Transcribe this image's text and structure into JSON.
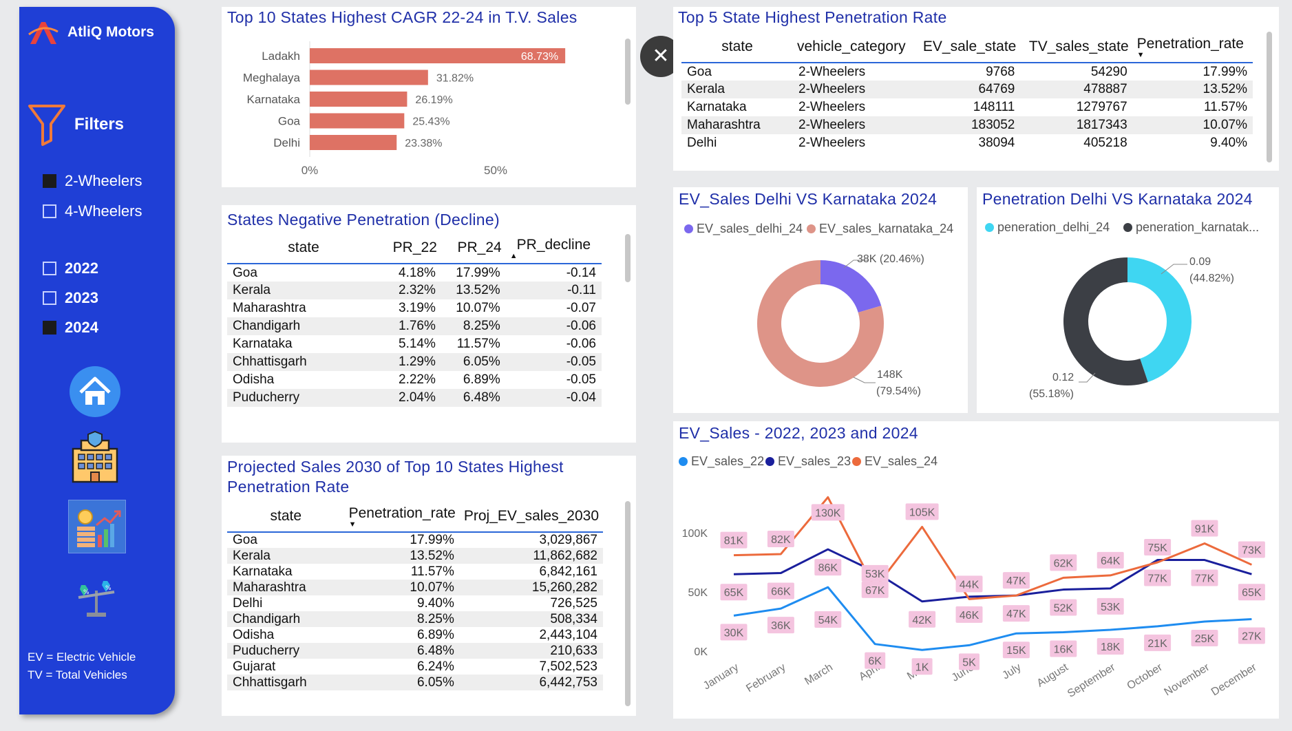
{
  "sidebar": {
    "brand": "AtliQ Motors",
    "filters_title": "Filters",
    "vehicle_filters": [
      {
        "label": "2-Wheelers",
        "checked": true
      },
      {
        "label": "4-Wheelers",
        "checked": false
      }
    ],
    "year_filters": [
      {
        "label": "2022",
        "checked": false
      },
      {
        "label": "2023",
        "checked": false
      },
      {
        "label": "2024",
        "checked": true
      }
    ],
    "nav_icons": [
      "home-icon",
      "building-icon",
      "sales-chart-icon",
      "balance-scale-icon"
    ],
    "note_ev": "EV = Electric Vehicle",
    "note_tv": "TV = Total Vehicles"
  },
  "cagr": {
    "title": "Top 10 States Highest CAGR 22-24 in T.V. Sales",
    "axis_ticks": [
      "0%",
      "50%"
    ],
    "color": "#de7264"
  },
  "negative": {
    "title": "States Negative Penetration (Decline)",
    "headers": [
      "state",
      "PR_22",
      "PR_24",
      "PR_decline"
    ],
    "rows": [
      [
        "Goa",
        "4.18%",
        "17.99%",
        "-0.14"
      ],
      [
        "Kerala",
        "2.32%",
        "13.52%",
        "-0.11"
      ],
      [
        "Maharashtra",
        "3.19%",
        "10.07%",
        "-0.07"
      ],
      [
        "Chandigarh",
        "1.76%",
        "8.25%",
        "-0.06"
      ],
      [
        "Karnataka",
        "5.14%",
        "11.57%",
        "-0.06"
      ],
      [
        "Chhattisgarh",
        "1.29%",
        "6.05%",
        "-0.05"
      ],
      [
        "Odisha",
        "2.22%",
        "6.89%",
        "-0.05"
      ],
      [
        "Puducherry",
        "2.04%",
        "6.48%",
        "-0.04"
      ]
    ]
  },
  "projected": {
    "title_line1": "Projected Sales 2030 of Top 10 States Highest",
    "title_line2": "Penetration Rate",
    "headers": [
      "state",
      "Penetration_rate",
      "Proj_EV_sales_2030"
    ],
    "rows": [
      [
        "Goa",
        "17.99%",
        "3,029,867"
      ],
      [
        "Kerala",
        "13.52%",
        "11,862,682"
      ],
      [
        "Karnataka",
        "11.57%",
        "6,842,161"
      ],
      [
        "Maharashtra",
        "10.07%",
        "15,260,282"
      ],
      [
        "Delhi",
        "9.40%",
        "726,525"
      ],
      [
        "Chandigarh",
        "8.25%",
        "508,334"
      ],
      [
        "Odisha",
        "6.89%",
        "2,443,104"
      ],
      [
        "Puducherry",
        "6.48%",
        "210,633"
      ],
      [
        "Gujarat",
        "6.24%",
        "7,502,523"
      ],
      [
        "Chhattisgarh",
        "6.05%",
        "6,442,753"
      ]
    ]
  },
  "top5": {
    "title": "Top 5 State Highest Penetration Rate",
    "headers": [
      "state",
      "vehicle_category",
      "EV_sale_state",
      "TV_sales_state",
      "Penetration_rate"
    ],
    "rows": [
      [
        "Goa",
        "2-Wheelers",
        "9768",
        "54290",
        "17.99%"
      ],
      [
        "Kerala",
        "2-Wheelers",
        "64769",
        "478887",
        "13.52%"
      ],
      [
        "Karnataka",
        "2-Wheelers",
        "148111",
        "1279767",
        "11.57%"
      ],
      [
        "Maharashtra",
        "2-Wheelers",
        "183052",
        "1817343",
        "10.07%"
      ],
      [
        "Delhi",
        "2-Wheelers",
        "38094",
        "405218",
        "9.40%"
      ]
    ]
  },
  "donut_sales": {
    "title": "EV_Sales Delhi VS Karnataka 2024",
    "legend": [
      {
        "name": "EV_sales_delhi_24",
        "color": "#7b68ee"
      },
      {
        "name": "EV_sales_karnataka_24",
        "color": "#de9488"
      }
    ],
    "label_a": "38K (20.46%)",
    "label_b1": "148K",
    "label_b2": "(79.54%)"
  },
  "donut_pen": {
    "title": "Penetration Delhi VS Karnataka 2024",
    "legend": [
      {
        "name": "peneration_delhi_24",
        "color": "#3fd6f2"
      },
      {
        "name": "peneration_karnatak...",
        "color": "#3c3f45"
      }
    ],
    "label_a1": "0.09",
    "label_a2": "(44.82%)",
    "label_b1": "0.12",
    "label_b2": "(55.18%)"
  },
  "line": {
    "title": "EV_Sales - 2022, 2023 and 2024",
    "legend": [
      {
        "name": "EV_sales_22",
        "color": "#1e8cf0"
      },
      {
        "name": "EV_sales_23",
        "color": "#1a1f9c"
      },
      {
        "name": "EV_sales_24",
        "color": "#ec6a3c"
      }
    ],
    "y_ticks": [
      "0K",
      "50K",
      "100K"
    ]
  },
  "chart_data": [
    {
      "type": "bar",
      "title": "Top 10 States Highest CAGR 22-24 in T.V. Sales",
      "categories": [
        "Ladakh",
        "Meghalaya",
        "Karnataka",
        "Goa",
        "Delhi"
      ],
      "values": [
        68.73,
        31.82,
        26.19,
        25.43,
        23.38
      ],
      "labels": [
        "68.73%",
        "31.82%",
        "26.19%",
        "25.43%",
        "23.38%"
      ],
      "xlim": [
        0,
        100
      ],
      "orientation": "horizontal"
    },
    {
      "type": "pie",
      "title": "EV_Sales Delhi VS Karnataka 2024",
      "categories": [
        "EV_sales_delhi_24",
        "EV_sales_karnataka_24"
      ],
      "values": [
        20.46,
        79.54
      ]
    },
    {
      "type": "pie",
      "title": "Penetration Delhi VS Karnataka 2024",
      "categories": [
        "peneration_delhi_24",
        "peneration_karnatak..."
      ],
      "values": [
        44.82,
        55.18
      ]
    },
    {
      "type": "line",
      "title": "EV_Sales - 2022, 2023 and 2024",
      "categories": [
        "January",
        "February",
        "March",
        "April",
        "May",
        "June",
        "July",
        "August",
        "September",
        "October",
        "November",
        "December"
      ],
      "ylim": [
        0,
        130000
      ],
      "series": [
        {
          "name": "EV_sales_22",
          "values": [
            30000,
            36000,
            54000,
            6000,
            1000,
            5000,
            15000,
            16000,
            18000,
            21000,
            25000,
            27000
          ],
          "labels": [
            "30K",
            "36K",
            "54K",
            "6K",
            "1K",
            "5K",
            "15K",
            "16K",
            "18K",
            "21K",
            "25K",
            "27K"
          ]
        },
        {
          "name": "EV_sales_23",
          "values": [
            65000,
            66000,
            86000,
            67000,
            42000,
            46000,
            47000,
            52000,
            53000,
            77000,
            77000,
            65000
          ],
          "labels": [
            "65K",
            "66K",
            "86K",
            "67K",
            "42K",
            "46K",
            "47K",
            "52K",
            "53K",
            "77K",
            "77K",
            "65K"
          ]
        },
        {
          "name": "EV_sales_24",
          "values": [
            81000,
            82000,
            130000,
            53000,
            105000,
            44000,
            47000,
            62000,
            64000,
            75000,
            91000,
            73000
          ],
          "labels": [
            "81K",
            "82K",
            "130K",
            "53K",
            "105K",
            "44K",
            "47K",
            "62K",
            "64K",
            "75K",
            "91K",
            "73K"
          ]
        }
      ]
    }
  ]
}
